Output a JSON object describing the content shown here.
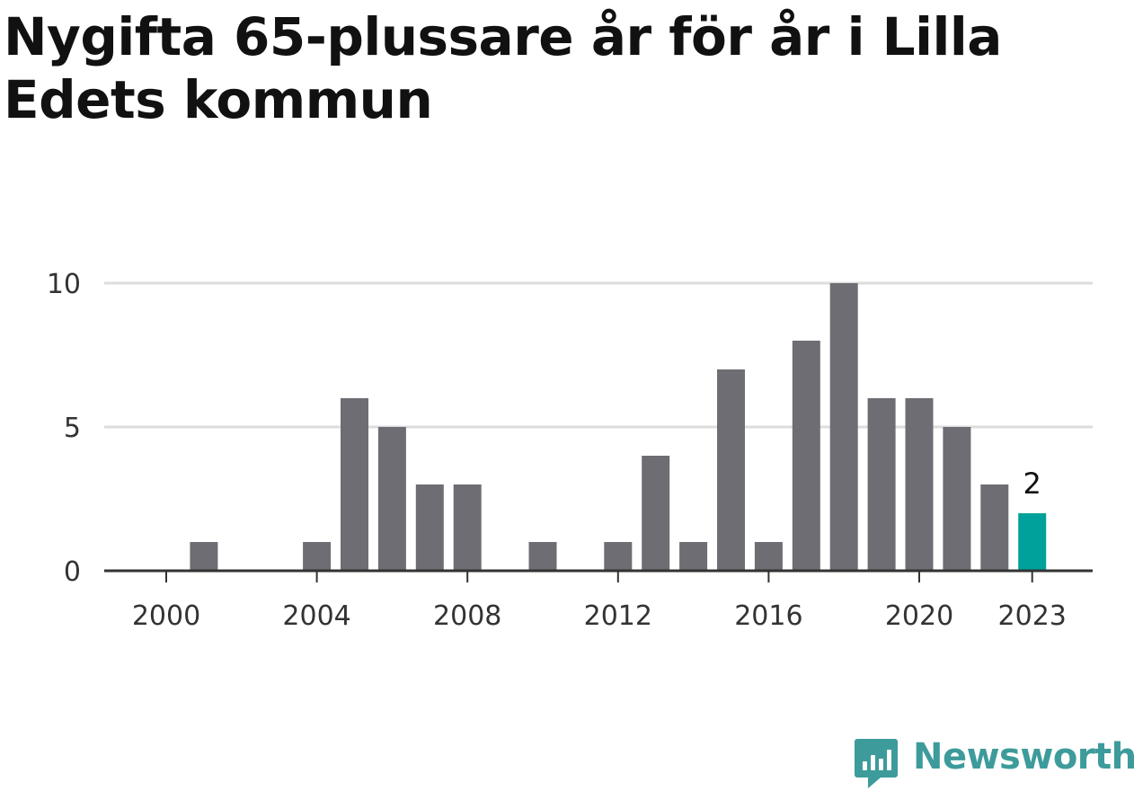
{
  "title": "Nygifta 65-plussare år för år i Lilla Edets kommun",
  "brand": {
    "name": "Newsworthy",
    "color": "#3d9b9b"
  },
  "colors": {
    "bar": "#6e6d73",
    "highlight": "#00a19a",
    "grid": "#dddddd",
    "axis": "#333333"
  },
  "chart_data": {
    "type": "bar",
    "x": [
      2000,
      2001,
      2002,
      2003,
      2004,
      2005,
      2006,
      2007,
      2008,
      2009,
      2010,
      2011,
      2012,
      2013,
      2014,
      2015,
      2016,
      2017,
      2018,
      2019,
      2020,
      2021,
      2022,
      2023
    ],
    "values": [
      0,
      1,
      0,
      0,
      1,
      6,
      5,
      3,
      3,
      0,
      1,
      0,
      1,
      4,
      1,
      7,
      1,
      8,
      10,
      6,
      6,
      5,
      3,
      2
    ],
    "x_ticks": [
      2000,
      2004,
      2008,
      2012,
      2016,
      2020,
      2023
    ],
    "y_ticks": [
      0,
      5,
      10
    ],
    "ylim": [
      0,
      10
    ],
    "highlight": {
      "x": 2023,
      "label": "2"
    },
    "grid": true,
    "xlabel": "",
    "ylabel": ""
  }
}
